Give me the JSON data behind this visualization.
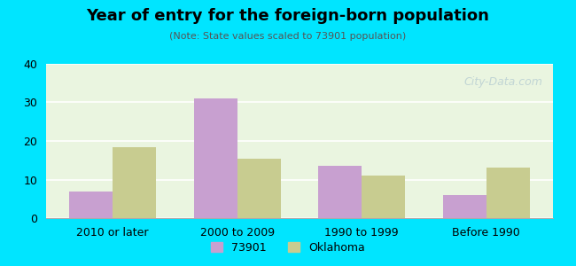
{
  "title": "Year of entry for the foreign-born population",
  "subtitle": "(Note: State values scaled to 73901 population)",
  "categories": [
    "2010 or later",
    "2000 to 2009",
    "1990 to 1999",
    "Before 1990"
  ],
  "values_73901": [
    7,
    31,
    13.5,
    6
  ],
  "values_oklahoma": [
    18.5,
    15.5,
    11,
    13
  ],
  "color_73901": "#c8a0d0",
  "color_oklahoma": "#c8cc90",
  "ylim": [
    0,
    40
  ],
  "yticks": [
    0,
    10,
    20,
    30,
    40
  ],
  "legend_73901": "73901",
  "legend_oklahoma": "Oklahoma",
  "background_color": "#e0ffe0",
  "outer_background": "#00e5ff",
  "bar_width": 0.35,
  "watermark": "City-Data.com"
}
